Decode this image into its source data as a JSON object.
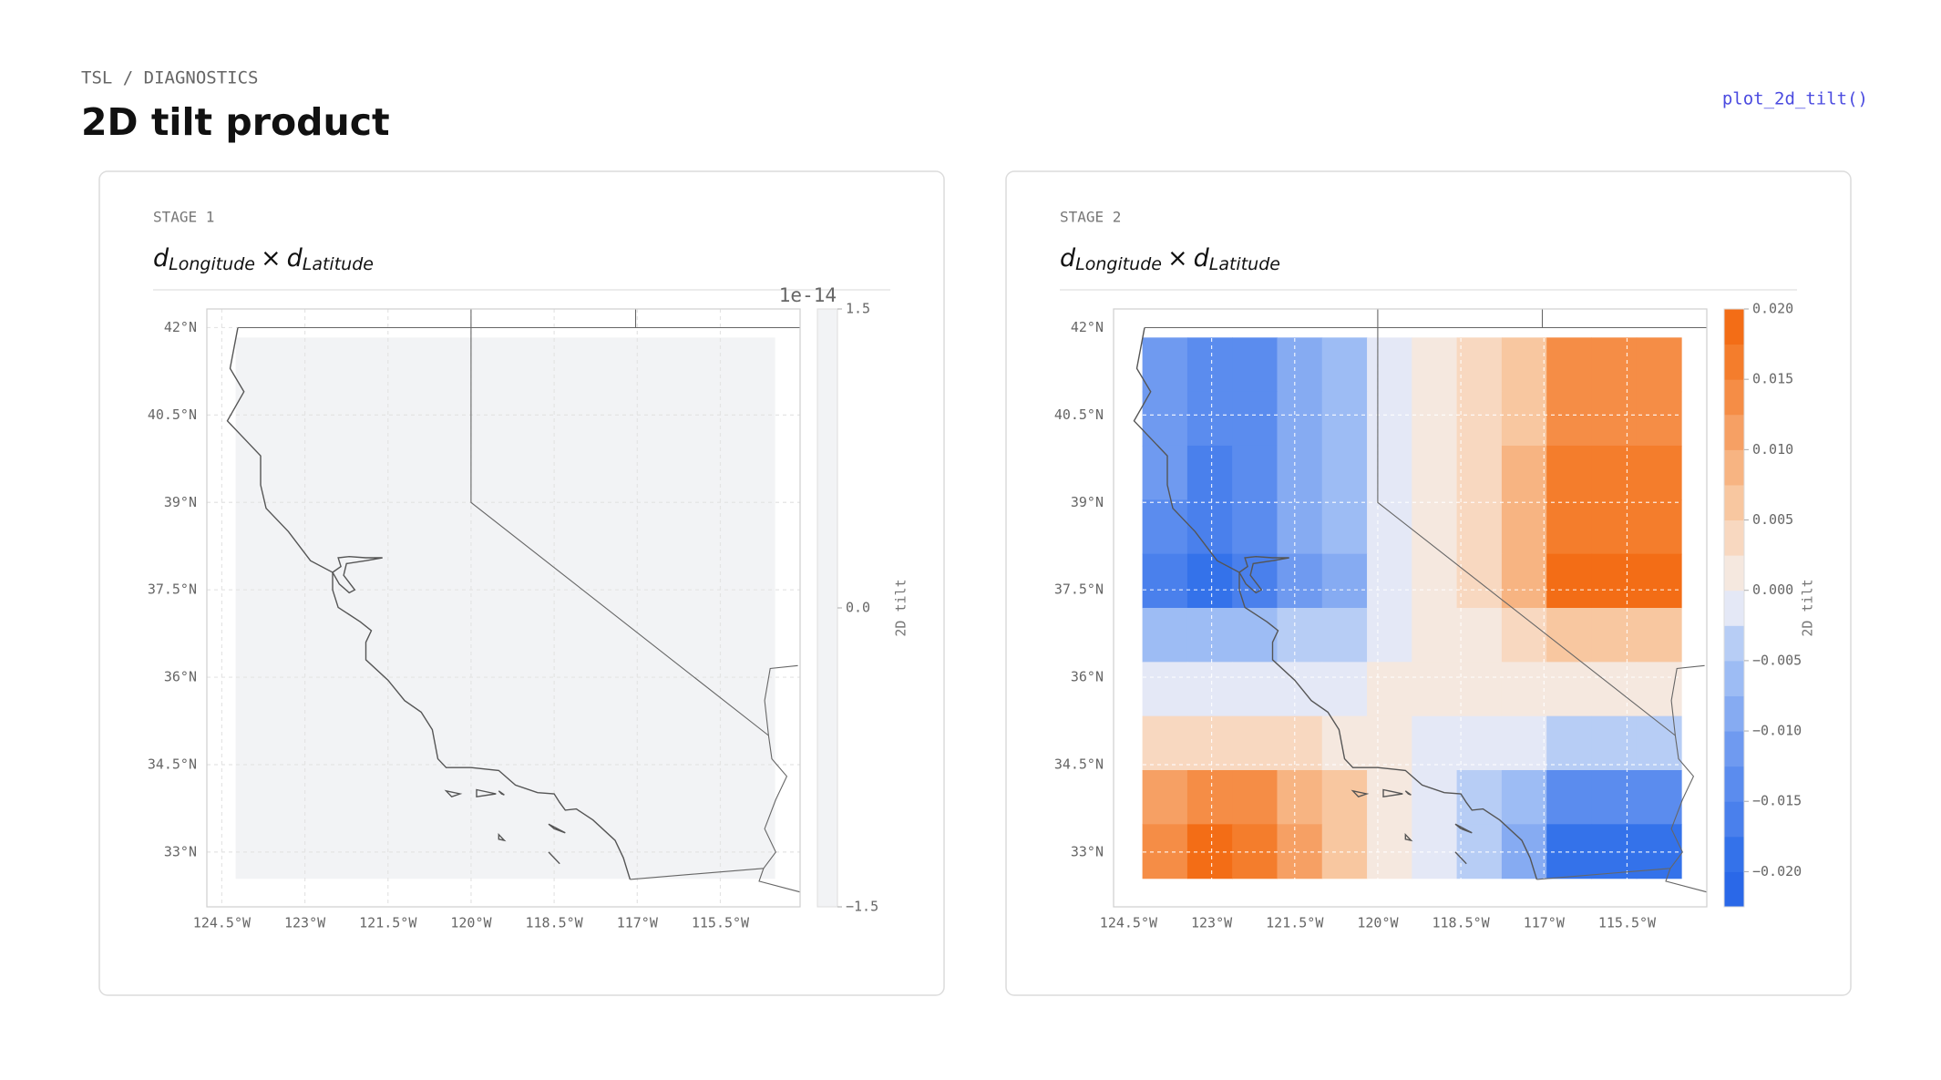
{
  "header": {
    "breadcrumb": "TSL / DIAGNOSTICS",
    "title": "2D tilt product",
    "function": "plot_2d_tilt()"
  },
  "panels": [
    {
      "stage": "STAGE 1",
      "title": {
        "var1": "d",
        "sub1": "Longitude",
        "op": "×",
        "var2": "d",
        "sub2": "Latitude"
      },
      "xlim": [
        -124.77,
        -114.06
      ],
      "ylim": [
        32.06,
        42.32
      ],
      "xticks": [
        {
          "value": -124.5,
          "label": "124.5°W"
        },
        {
          "value": -123,
          "label": "123°W"
        },
        {
          "value": -121.5,
          "label": "121.5°W"
        },
        {
          "value": -120,
          "label": "120°W"
        },
        {
          "value": -118.5,
          "label": "118.5°W"
        },
        {
          "value": -117,
          "label": "117°W"
        },
        {
          "value": -115.5,
          "label": "115.5°W"
        }
      ],
      "yticks": [
        {
          "value": 42,
          "label": "42°N"
        },
        {
          "value": 40.5,
          "label": "40.5°N"
        },
        {
          "value": 39,
          "label": "39°N"
        },
        {
          "value": 37.5,
          "label": "37.5°N"
        },
        {
          "value": 36,
          "label": "36°N"
        },
        {
          "value": 34.5,
          "label": "34.5°N"
        },
        {
          "value": 33,
          "label": "33°N"
        }
      ],
      "grid": true,
      "grid_color": "#e4e4e4",
      "extent": [
        -124.25,
        -114.52,
        32.55,
        41.83
      ],
      "field": {
        "values": [
          [
            0
          ]
        ]
      },
      "clim": [
        -1.5,
        1.5
      ],
      "colormap": [
        "#f2f3f5"
      ],
      "cbar_ticks": [
        1.5,
        {
          "value": 0,
          "label": "0.0"
        },
        {
          "value": -1.5,
          "label": "−1.5"
        }
      ],
      "cbar_offset": "1e-14",
      "cbar_label": "2D tilt"
    },
    {
      "stage": "STAGE 2",
      "title": {
        "var1": "d",
        "sub1": "Longitude",
        "op": "×",
        "var2": "d",
        "sub2": "Latitude"
      },
      "xlim": [
        -124.77,
        -114.06
      ],
      "ylim": [
        32.06,
        42.32
      ],
      "xticks": [
        {
          "value": -124.5,
          "label": "124.5°W"
        },
        {
          "value": -123,
          "label": "123°W"
        },
        {
          "value": -121.5,
          "label": "121.5°W"
        },
        {
          "value": -120,
          "label": "120°W"
        },
        {
          "value": -118.5,
          "label": "118.5°W"
        },
        {
          "value": -117,
          "label": "117°W"
        },
        {
          "value": -115.5,
          "label": "115.5°W"
        }
      ],
      "yticks": [
        {
          "value": 42,
          "label": "42°N"
        },
        {
          "value": 40.5,
          "label": "40.5°N"
        },
        {
          "value": 39,
          "label": "39°N"
        },
        {
          "value": 37.5,
          "label": "37.5°N"
        },
        {
          "value": 36,
          "label": "36°N"
        },
        {
          "value": 34.5,
          "label": "34.5°N"
        },
        {
          "value": 33,
          "label": "33°N"
        }
      ],
      "grid": true,
      "grid_color": "rgba(255,255,255,0.85)",
      "extent": [
        -124.25,
        -114.52,
        32.55,
        41.83
      ],
      "field": {
        "values": [
          [
            -0.0115,
            -0.0144,
            -0.013,
            -0.0086,
            -0.0058,
            -0.0007,
            0.0014,
            0.0029,
            0.0072,
            0.0144,
            0.0144,
            0.0144
          ],
          [
            -0.0115,
            -0.0144,
            -0.013,
            -0.0086,
            -0.0058,
            -0.0007,
            0.0014,
            0.0029,
            0.0072,
            0.0144,
            0.0144,
            0.0144
          ],
          [
            -0.0122,
            -0.0152,
            -0.0137,
            -0.0091,
            -0.0061,
            -0.0008,
            0.0015,
            0.003,
            0.0076,
            0.0152,
            0.0152,
            0.0152
          ],
          [
            -0.0128,
            -0.016,
            -0.0144,
            -0.0096,
            -0.0064,
            -0.0008,
            0.0016,
            0.0032,
            0.008,
            0.016,
            0.016,
            0.016
          ],
          [
            -0.0154,
            -0.0192,
            -0.0173,
            -0.0115,
            -0.0077,
            -0.001,
            0.0019,
            0.0038,
            0.0096,
            0.0192,
            0.0192,
            0.0192
          ],
          [
            -0.0051,
            -0.0064,
            -0.0058,
            -0.0038,
            -0.0026,
            -0.0003,
            0.0006,
            0.0013,
            0.0032,
            0.0064,
            0.0064,
            0.0064
          ],
          [
            -0.0006,
            -0.0008,
            -0.0007,
            -0.0005,
            -0.0003,
            0,
            0.0001,
            0.0002,
            0.0004,
            0.0008,
            0.0008,
            0.0008
          ],
          [
            0.0038,
            0.0048,
            0.0043,
            0.0029,
            0.0019,
            0.0002,
            -0.0005,
            -0.001,
            -0.0024,
            -0.0048,
            -0.0048,
            -0.0048
          ],
          [
            0.0115,
            0.0144,
            0.013,
            0.0086,
            0.0058,
            0.0007,
            -0.0014,
            -0.0029,
            -0.0072,
            -0.0144,
            -0.0144,
            -0.0144
          ],
          [
            0.0141,
            0.0176,
            0.0158,
            0.0106,
            0.007,
            0.0009,
            -0.0018,
            -0.0035,
            -0.0088,
            -0.0176,
            -0.0176,
            -0.0176
          ]
        ]
      },
      "clim": [
        -0.0225,
        0.02
      ],
      "colormap": [
        "#2a68e8",
        "#3472ea",
        "#4a80ec",
        "#5b8cee",
        "#6f9af0",
        "#86abf2",
        "#9dbcf4",
        "#b7cdf5",
        "#e4e8f6",
        "#f5e8df",
        "#f8d8c0",
        "#f8c7a0",
        "#f7b482",
        "#f6a064",
        "#f58d46",
        "#f47d2c",
        "#f36d16"
      ],
      "cbar_ticks": [
        {
          "value": 0.02,
          "label": "0.020"
        },
        {
          "value": 0.015,
          "label": "0.015"
        },
        {
          "value": 0.01,
          "label": "0.010"
        },
        {
          "value": 0.005,
          "label": "0.005"
        },
        {
          "value": 0,
          "label": "0.000"
        },
        {
          "value": -0.005,
          "label": "−0.005"
        },
        {
          "value": -0.01,
          "label": "−0.010"
        },
        {
          "value": -0.015,
          "label": "−0.015"
        },
        {
          "value": -0.02,
          "label": "−0.020"
        }
      ],
      "cbar_label": "2D tilt"
    }
  ]
}
